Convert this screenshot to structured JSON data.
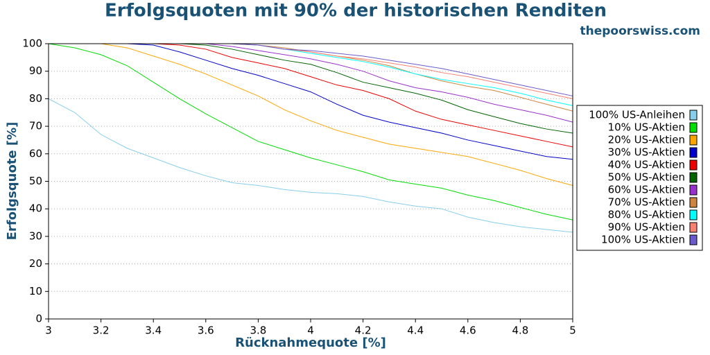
{
  "chart_data": {
    "type": "line",
    "title": "Erfolgsquoten mit 90% der historischen Renditen",
    "subtitle": "thepoorswiss.com",
    "x_label": "Rücknahmequote [%]",
    "y_label": "Erfolgsquote [%]",
    "x": [
      3,
      3.1,
      3.2,
      3.3,
      3.4,
      3.5,
      3.6,
      3.7,
      3.8,
      3.9,
      4,
      4.1,
      4.2,
      4.3,
      4.4,
      4.5,
      4.6,
      4.7,
      4.8,
      4.9,
      5
    ],
    "xlim": [
      3,
      5
    ],
    "xticks": [
      3,
      3.2,
      3.4,
      3.6,
      3.8,
      4,
      4.2,
      4.4,
      4.6,
      4.8,
      5
    ],
    "ylim": [
      0,
      100
    ],
    "yticks": [
      0,
      10,
      20,
      30,
      40,
      50,
      60,
      70,
      80,
      90,
      100
    ],
    "grid": true,
    "legend": "right",
    "series": [
      {
        "name": "100% US-Anleihen",
        "color": "#87ceeb",
        "values": [
          80,
          75,
          67,
          62,
          58.5,
          55,
          52,
          49.5,
          48.5,
          47,
          46,
          45.5,
          44.5,
          42.5,
          41,
          40,
          37,
          35,
          33.5,
          32.5,
          31.5
        ]
      },
      {
        "name": "10% US-Aktien",
        "color": "#00dd00",
        "values": [
          100,
          98.5,
          96,
          92,
          86,
          80,
          74.5,
          69.5,
          64.5,
          61.5,
          58.5,
          56,
          53.5,
          50.5,
          49,
          47.5,
          45,
          43,
          40.5,
          38,
          36
        ]
      },
      {
        "name": "20% US-Aktien",
        "color": "#ffa500",
        "values": [
          100,
          100,
          100,
          98.5,
          95.5,
          92.5,
          89,
          85,
          81,
          76,
          72,
          68.5,
          66,
          63.5,
          62,
          60.5,
          59,
          56.5,
          54,
          51,
          48.5
        ]
      },
      {
        "name": "30% US-Aktien",
        "color": "#0000cc",
        "values": [
          100,
          100,
          100,
          100,
          99.5,
          97,
          94,
          91,
          88.5,
          85.5,
          82.5,
          78,
          74,
          71.5,
          69.5,
          67.5,
          65,
          63,
          61,
          59,
          58
        ]
      },
      {
        "name": "40% US-Aktien",
        "color": "#ee0000",
        "values": [
          100,
          100,
          100,
          100,
          100,
          99.5,
          98,
          95,
          93,
          91,
          88,
          85,
          83,
          80,
          75.5,
          72.5,
          70.5,
          68.5,
          66.5,
          64.5,
          62.5
        ]
      },
      {
        "name": "50% US-Aktien",
        "color": "#006400",
        "values": [
          100,
          100,
          100,
          100,
          100,
          100,
          99.5,
          98,
          96,
          94,
          92.5,
          89.5,
          86,
          84,
          82,
          79.5,
          76,
          73.5,
          71,
          69,
          67.5
        ]
      },
      {
        "name": "60% US-Aktien",
        "color": "#9932cc",
        "values": [
          100,
          100,
          100,
          100,
          100,
          100,
          100,
          99,
          97.5,
          96,
          94.5,
          92.5,
          90,
          86.5,
          84,
          82.5,
          80.5,
          78,
          76,
          74,
          71.5
        ]
      },
      {
        "name": "70% US-Aktien",
        "color": "#cd853f",
        "values": [
          100,
          100,
          100,
          100,
          100,
          100,
          100,
          100,
          99.5,
          98.5,
          97,
          95.5,
          94,
          92,
          89,
          86.5,
          84.5,
          83,
          80.5,
          78,
          75.5
        ]
      },
      {
        "name": "80% US-Aktien",
        "color": "#00ffff",
        "values": [
          100,
          100,
          100,
          100,
          100,
          100,
          100,
          100,
          99.5,
          98,
          96.5,
          95,
          93.5,
          91.5,
          89,
          87,
          85.5,
          84,
          82,
          79.5,
          77.5
        ]
      },
      {
        "name": "90% US-Aktien",
        "color": "#fa8072",
        "values": [
          100,
          100,
          100,
          100,
          100,
          100,
          100,
          100,
          99.5,
          98,
          97,
          95.5,
          94.5,
          93,
          91.5,
          89.5,
          88,
          86,
          84,
          82,
          80
        ]
      },
      {
        "name": "100% US-Aktien",
        "color": "#6a5acd",
        "values": [
          100,
          100,
          100,
          100,
          100,
          100,
          100,
          100,
          99.5,
          98,
          97.5,
          96.5,
          95.5,
          94,
          92.5,
          91,
          89,
          87,
          85,
          83,
          81
        ]
      }
    ]
  }
}
